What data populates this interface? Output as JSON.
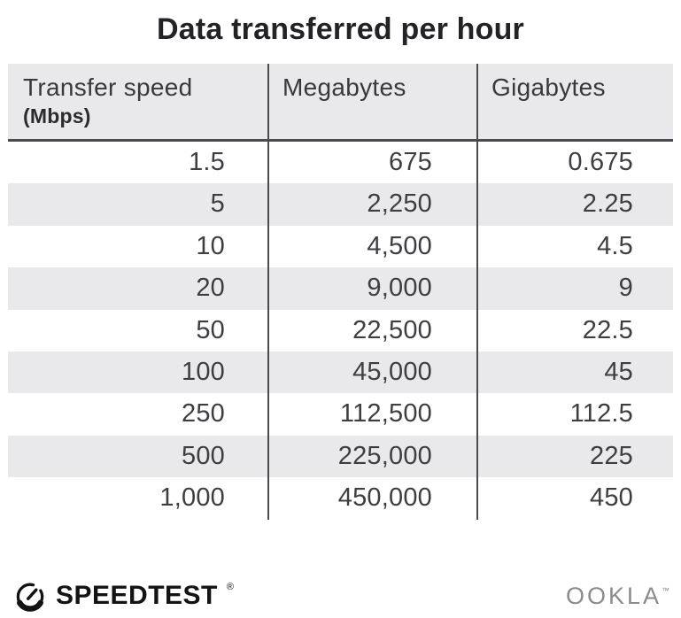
{
  "title": "Data transferred per hour",
  "table": {
    "columns": [
      {
        "label": "Transfer speed",
        "sublabel": "(Mbps)"
      },
      {
        "label": "Megabytes"
      },
      {
        "label": "Gigabytes"
      }
    ],
    "rows": [
      [
        "1.5",
        "675",
        "0.675"
      ],
      [
        "5",
        "2,250",
        "2.25"
      ],
      [
        "10",
        "4,500",
        "4.5"
      ],
      [
        "20",
        "9,000",
        "9"
      ],
      [
        "50",
        "22,500",
        "22.5"
      ],
      [
        "100",
        "45,000",
        "45"
      ],
      [
        "250",
        "112,500",
        "112.5"
      ],
      [
        "500",
        "225,000",
        "225"
      ],
      [
        "1,000",
        "450,000",
        "450"
      ]
    ]
  },
  "chart_data": {
    "type": "table",
    "title": "Data transferred per hour",
    "columns": [
      "Transfer speed (Mbps)",
      "Megabytes",
      "Gigabytes"
    ],
    "x": [
      1.5,
      5,
      10,
      20,
      50,
      100,
      250,
      500,
      1000
    ],
    "series": [
      {
        "name": "Megabytes",
        "values": [
          675,
          2250,
          4500,
          9000,
          22500,
          45000,
          112500,
          225000,
          450000
        ]
      },
      {
        "name": "Gigabytes",
        "values": [
          0.675,
          2.25,
          4.5,
          9,
          22.5,
          45,
          112.5,
          225,
          450
        ]
      }
    ],
    "layout": {
      "striped_rows": true,
      "header_background": "#e9e8ea",
      "row_alt_background": "#e9e8ea"
    }
  },
  "footer": {
    "speedtest_label": "SPEEDTEST",
    "speedtest_mark": "®",
    "ookla_label": "OOKLA",
    "ookla_mark": "™"
  },
  "colors": {
    "header_bg": "#e9e8ea",
    "row_alt_bg": "#e9e8ea",
    "grid_line": "#4b4a4e",
    "title_text": "#232227",
    "body_text": "#3e3d42",
    "speedtest_black": "#131313",
    "ookla_gray": "#8b8a8d"
  }
}
